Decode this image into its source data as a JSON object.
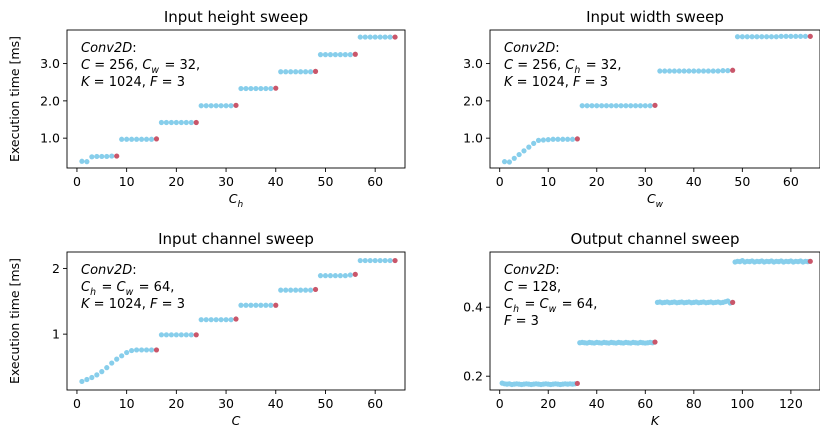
{
  "colors": {
    "point": "#87CEEB",
    "endpoint": "#C9566A"
  },
  "chart_data": [
    {
      "type": "scatter",
      "title": "Input height sweep",
      "xlabel": "C",
      "xlabel_sub": "h",
      "ylabel": "Execution time [ms]",
      "xlim": [
        -2,
        66
      ],
      "ylim": [
        0.2,
        3.9
      ],
      "xticks": [
        0,
        10,
        20,
        30,
        40,
        50,
        60
      ],
      "yticks": [
        1.0,
        2.0,
        3.0
      ],
      "ytick_labels": [
        "1.0",
        "2.0",
        "3.0"
      ],
      "annotation": [
        "Conv2D:",
        "C = 256, C_w = 32,",
        "K = 1024, F = 3"
      ],
      "series": [
        {
          "name": "",
          "x": [
            1,
            2,
            3,
            4,
            5,
            6,
            7,
            8,
            9,
            10,
            11,
            12,
            13,
            14,
            15,
            16,
            17,
            18,
            19,
            20,
            21,
            22,
            23,
            24,
            25,
            26,
            27,
            28,
            29,
            30,
            31,
            32,
            33,
            34,
            35,
            36,
            37,
            38,
            39,
            40,
            41,
            42,
            43,
            44,
            45,
            46,
            47,
            48,
            49,
            50,
            51,
            52,
            53,
            54,
            55,
            56,
            57,
            58,
            59,
            60,
            61,
            62,
            63,
            64
          ],
          "y": [
            0.38,
            0.37,
            0.5,
            0.51,
            0.51,
            0.51,
            0.52,
            0.52,
            0.97,
            0.97,
            0.97,
            0.97,
            0.97,
            0.97,
            0.97,
            0.98,
            1.42,
            1.42,
            1.42,
            1.42,
            1.42,
            1.42,
            1.42,
            1.42,
            1.87,
            1.87,
            1.87,
            1.87,
            1.87,
            1.87,
            1.87,
            1.88,
            2.33,
            2.33,
            2.33,
            2.33,
            2.33,
            2.33,
            2.33,
            2.34,
            2.78,
            2.78,
            2.78,
            2.78,
            2.78,
            2.78,
            2.78,
            2.79,
            3.24,
            3.24,
            3.24,
            3.24,
            3.24,
            3.24,
            3.24,
            3.25,
            3.71,
            3.71,
            3.71,
            3.71,
            3.71,
            3.71,
            3.71,
            3.71
          ]
        }
      ],
      "highlight_x": [
        8,
        16,
        24,
        32,
        40,
        48,
        56,
        64
      ]
    },
    {
      "type": "scatter",
      "title": "Input width sweep",
      "xlabel": "C",
      "xlabel_sub": "w",
      "ylabel": "",
      "xlim": [
        -2,
        66
      ],
      "ylim": [
        0.2,
        3.9
      ],
      "xticks": [
        0,
        10,
        20,
        30,
        40,
        50,
        60
      ],
      "yticks": [
        1.0,
        2.0,
        3.0
      ],
      "ytick_labels": [
        "1.0",
        "2.0",
        "3.0"
      ],
      "annotation": [
        "Conv2D:",
        "C = 256, C_h = 32,",
        "K = 1024, F = 3"
      ],
      "series": [
        {
          "name": "",
          "x": [
            1,
            2,
            3,
            4,
            5,
            6,
            7,
            8,
            9,
            10,
            11,
            12,
            13,
            14,
            15,
            16,
            17,
            18,
            19,
            20,
            21,
            22,
            23,
            24,
            25,
            26,
            27,
            28,
            29,
            30,
            31,
            32,
            33,
            34,
            35,
            36,
            37,
            38,
            39,
            40,
            41,
            42,
            43,
            44,
            45,
            46,
            47,
            48,
            49,
            50,
            51,
            52,
            53,
            54,
            55,
            56,
            57,
            58,
            59,
            60,
            61,
            62,
            63,
            64
          ],
          "y": [
            0.37,
            0.36,
            0.46,
            0.56,
            0.66,
            0.76,
            0.86,
            0.94,
            0.95,
            0.96,
            0.97,
            0.97,
            0.97,
            0.97,
            0.97,
            0.98,
            1.87,
            1.87,
            1.87,
            1.87,
            1.87,
            1.87,
            1.87,
            1.87,
            1.87,
            1.87,
            1.87,
            1.87,
            1.87,
            1.87,
            1.87,
            1.88,
            2.8,
            2.8,
            2.8,
            2.8,
            2.8,
            2.8,
            2.8,
            2.8,
            2.8,
            2.8,
            2.8,
            2.8,
            2.8,
            2.81,
            2.81,
            2.82,
            3.72,
            3.72,
            3.72,
            3.72,
            3.72,
            3.72,
            3.72,
            3.72,
            3.72,
            3.73,
            3.73,
            3.73,
            3.73,
            3.73,
            3.73,
            3.73
          ]
        }
      ],
      "highlight_x": [
        16,
        32,
        48,
        64
      ]
    },
    {
      "type": "scatter",
      "title": "Input channel sweep",
      "xlabel": "C",
      "xlabel_sub": "",
      "ylabel": "Execution time [ms]",
      "xlim": [
        -2,
        66
      ],
      "ylim": [
        0.15,
        2.25
      ],
      "xticks": [
        0,
        10,
        20,
        30,
        40,
        50,
        60
      ],
      "yticks": [
        1,
        2
      ],
      "ytick_labels": [
        "1",
        "2"
      ],
      "annotation": [
        "Conv2D:",
        "C_h = C_w = 64,",
        "K = 1024, F = 3"
      ],
      "series": [
        {
          "name": "",
          "x": [
            1,
            2,
            3,
            4,
            5,
            6,
            7,
            8,
            9,
            10,
            11,
            12,
            13,
            14,
            15,
            16,
            17,
            18,
            19,
            20,
            21,
            22,
            23,
            24,
            25,
            26,
            27,
            28,
            29,
            30,
            31,
            32,
            33,
            34,
            35,
            36,
            37,
            38,
            39,
            40,
            41,
            42,
            43,
            44,
            45,
            46,
            47,
            48,
            49,
            50,
            51,
            52,
            53,
            54,
            55,
            56,
            57,
            58,
            59,
            60,
            61,
            62,
            63,
            64
          ],
          "y": [
            0.28,
            0.31,
            0.34,
            0.38,
            0.43,
            0.49,
            0.56,
            0.62,
            0.67,
            0.72,
            0.75,
            0.76,
            0.76,
            0.76,
            0.76,
            0.76,
            0.99,
            0.99,
            0.99,
            0.99,
            0.99,
            0.99,
            0.99,
            0.99,
            1.22,
            1.22,
            1.22,
            1.22,
            1.22,
            1.22,
            1.22,
            1.23,
            1.44,
            1.44,
            1.44,
            1.44,
            1.44,
            1.44,
            1.44,
            1.44,
            1.67,
            1.67,
            1.67,
            1.67,
            1.67,
            1.67,
            1.67,
            1.68,
            1.89,
            1.89,
            1.89,
            1.89,
            1.89,
            1.89,
            1.9,
            1.91,
            2.12,
            2.12,
            2.12,
            2.12,
            2.12,
            2.12,
            2.12,
            2.12
          ]
        }
      ],
      "highlight_x": [
        16,
        24,
        32,
        40,
        48,
        56,
        64
      ]
    },
    {
      "type": "scatter",
      "title": "Output channel sweep",
      "xlabel": "K",
      "xlabel_sub": "",
      "ylabel": "",
      "xlim": [
        -4,
        132
      ],
      "ylim": [
        0.16,
        0.56
      ],
      "xticks": [
        0,
        20,
        40,
        60,
        80,
        100,
        120
      ],
      "yticks": [
        0.2,
        0.4
      ],
      "ytick_labels": [
        "0.2",
        "0.4"
      ],
      "annotation": [
        "Conv2D:",
        "C = 128,",
        "C_h = C_w = 64,",
        "F = 3"
      ],
      "series": [
        {
          "name": "",
          "x": [
            1,
            2,
            3,
            4,
            5,
            6,
            7,
            8,
            9,
            10,
            11,
            12,
            13,
            14,
            15,
            16,
            17,
            18,
            19,
            20,
            21,
            22,
            23,
            24,
            25,
            26,
            27,
            28,
            29,
            30,
            31,
            32,
            33,
            34,
            35,
            36,
            37,
            38,
            39,
            40,
            41,
            42,
            43,
            44,
            45,
            46,
            47,
            48,
            49,
            50,
            51,
            52,
            53,
            54,
            55,
            56,
            57,
            58,
            59,
            60,
            61,
            62,
            63,
            64,
            65,
            66,
            67,
            68,
            69,
            70,
            71,
            72,
            73,
            74,
            75,
            76,
            77,
            78,
            79,
            80,
            81,
            82,
            83,
            84,
            85,
            86,
            87,
            88,
            89,
            90,
            91,
            92,
            93,
            94,
            95,
            96,
            97,
            98,
            99,
            100,
            101,
            102,
            103,
            104,
            105,
            106,
            107,
            108,
            109,
            110,
            111,
            112,
            113,
            114,
            115,
            116,
            117,
            118,
            119,
            120,
            121,
            122,
            123,
            124,
            125,
            126,
            127,
            128
          ],
          "y": [
            0.18,
            0.178,
            0.177,
            0.178,
            0.176,
            0.177,
            0.178,
            0.177,
            0.176,
            0.177,
            0.178,
            0.177,
            0.176,
            0.177,
            0.178,
            0.177,
            0.176,
            0.177,
            0.178,
            0.177,
            0.176,
            0.177,
            0.178,
            0.177,
            0.176,
            0.177,
            0.178,
            0.177,
            0.178,
            0.177,
            0.178,
            0.179,
            0.297,
            0.298,
            0.297,
            0.296,
            0.298,
            0.297,
            0.296,
            0.298,
            0.297,
            0.296,
            0.298,
            0.297,
            0.296,
            0.298,
            0.297,
            0.296,
            0.298,
            0.297,
            0.296,
            0.298,
            0.297,
            0.296,
            0.298,
            0.297,
            0.296,
            0.298,
            0.297,
            0.296,
            0.297,
            0.298,
            0.297,
            0.299,
            0.414,
            0.415,
            0.413,
            0.414,
            0.415,
            0.413,
            0.414,
            0.415,
            0.413,
            0.414,
            0.415,
            0.413,
            0.414,
            0.415,
            0.413,
            0.414,
            0.415,
            0.413,
            0.414,
            0.415,
            0.413,
            0.414,
            0.415,
            0.413,
            0.414,
            0.415,
            0.413,
            0.414,
            0.416,
            0.418,
            0.412,
            0.414,
            0.531,
            0.533,
            0.532,
            0.535,
            0.531,
            0.533,
            0.532,
            0.534,
            0.531,
            0.533,
            0.532,
            0.534,
            0.531,
            0.533,
            0.532,
            0.534,
            0.531,
            0.533,
            0.532,
            0.534,
            0.531,
            0.533,
            0.532,
            0.534,
            0.531,
            0.533,
            0.532,
            0.534,
            0.531,
            0.533,
            0.532,
            0.533
          ]
        }
      ],
      "highlight_x": [
        32,
        64,
        96,
        128
      ]
    }
  ]
}
